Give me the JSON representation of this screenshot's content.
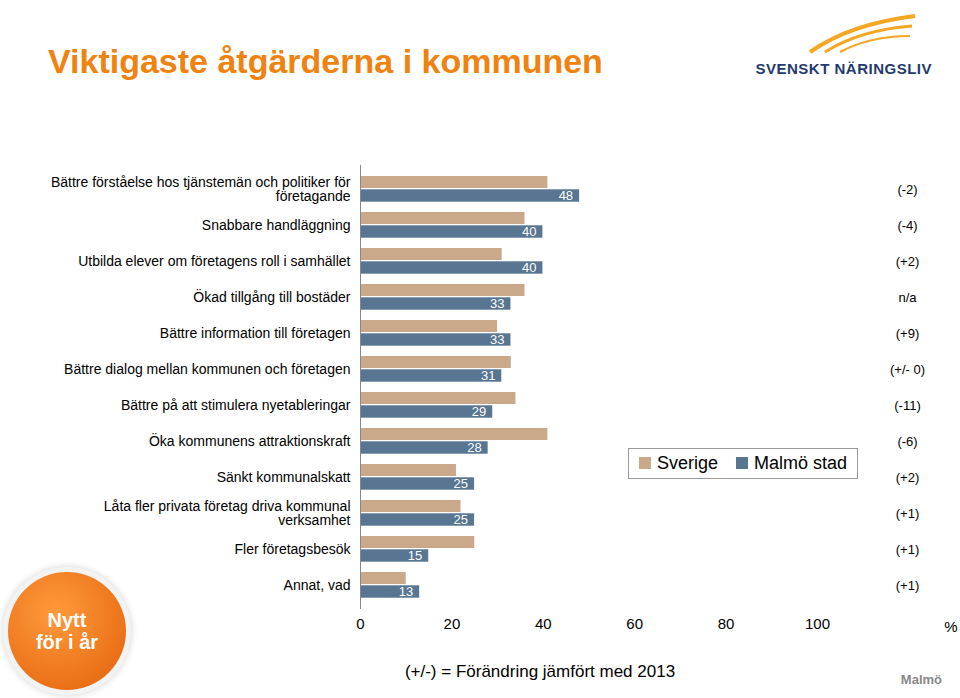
{
  "chart_data": {
    "type": "bar",
    "title": "Viktigaste åtgärderna i kommunen",
    "orientation": "horizontal",
    "categories": [
      "Bättre förståelse hos tjänstemän och politiker för företagande",
      "Snabbare handläggning",
      "Utbilda elever om företagens roll i samhället",
      "Ökad tillgång till bostäder",
      "Bättre information till företagen",
      "Bättre dialog mellan kommunen och företagen",
      "Bättre på att stimulera nyetableringar",
      "Öka kommunens attraktionskraft",
      "Sänkt kommunalskatt",
      "Låta fler privata företag driva kommunal verksamhet",
      "Fler företagsbesök",
      "Annat, vad"
    ],
    "series": [
      {
        "name": "Sverige",
        "color": "#c9a98a",
        "values": [
          41,
          36,
          31,
          36,
          30,
          33,
          34,
          41,
          21,
          22,
          25,
          10
        ]
      },
      {
        "name": "Malmö stad",
        "color": "#587592",
        "data_labels": true,
        "values": [
          48,
          40,
          40,
          33,
          33,
          31,
          29,
          28,
          25,
          25,
          15,
          13
        ]
      }
    ],
    "change_labels": [
      "(-2)",
      "(-4)",
      "(+2)",
      "n/a",
      "(+9)",
      "(+/- 0)",
      "(-11)",
      "(-6)",
      "(+2)",
      "(+1)",
      "(+1)",
      "(+1)"
    ],
    "xlim": [
      0,
      100
    ],
    "xticks": [
      0,
      20,
      40,
      60,
      80,
      100
    ],
    "x_label": "%",
    "legend": "right",
    "grid": false,
    "footnote": "(+/-) = Förändring jämfört med 2013",
    "logo": "SVENSKT NÄRINGSLIV",
    "badge": [
      "Nytt",
      "för i år"
    ],
    "corner_label": "Malmö"
  }
}
